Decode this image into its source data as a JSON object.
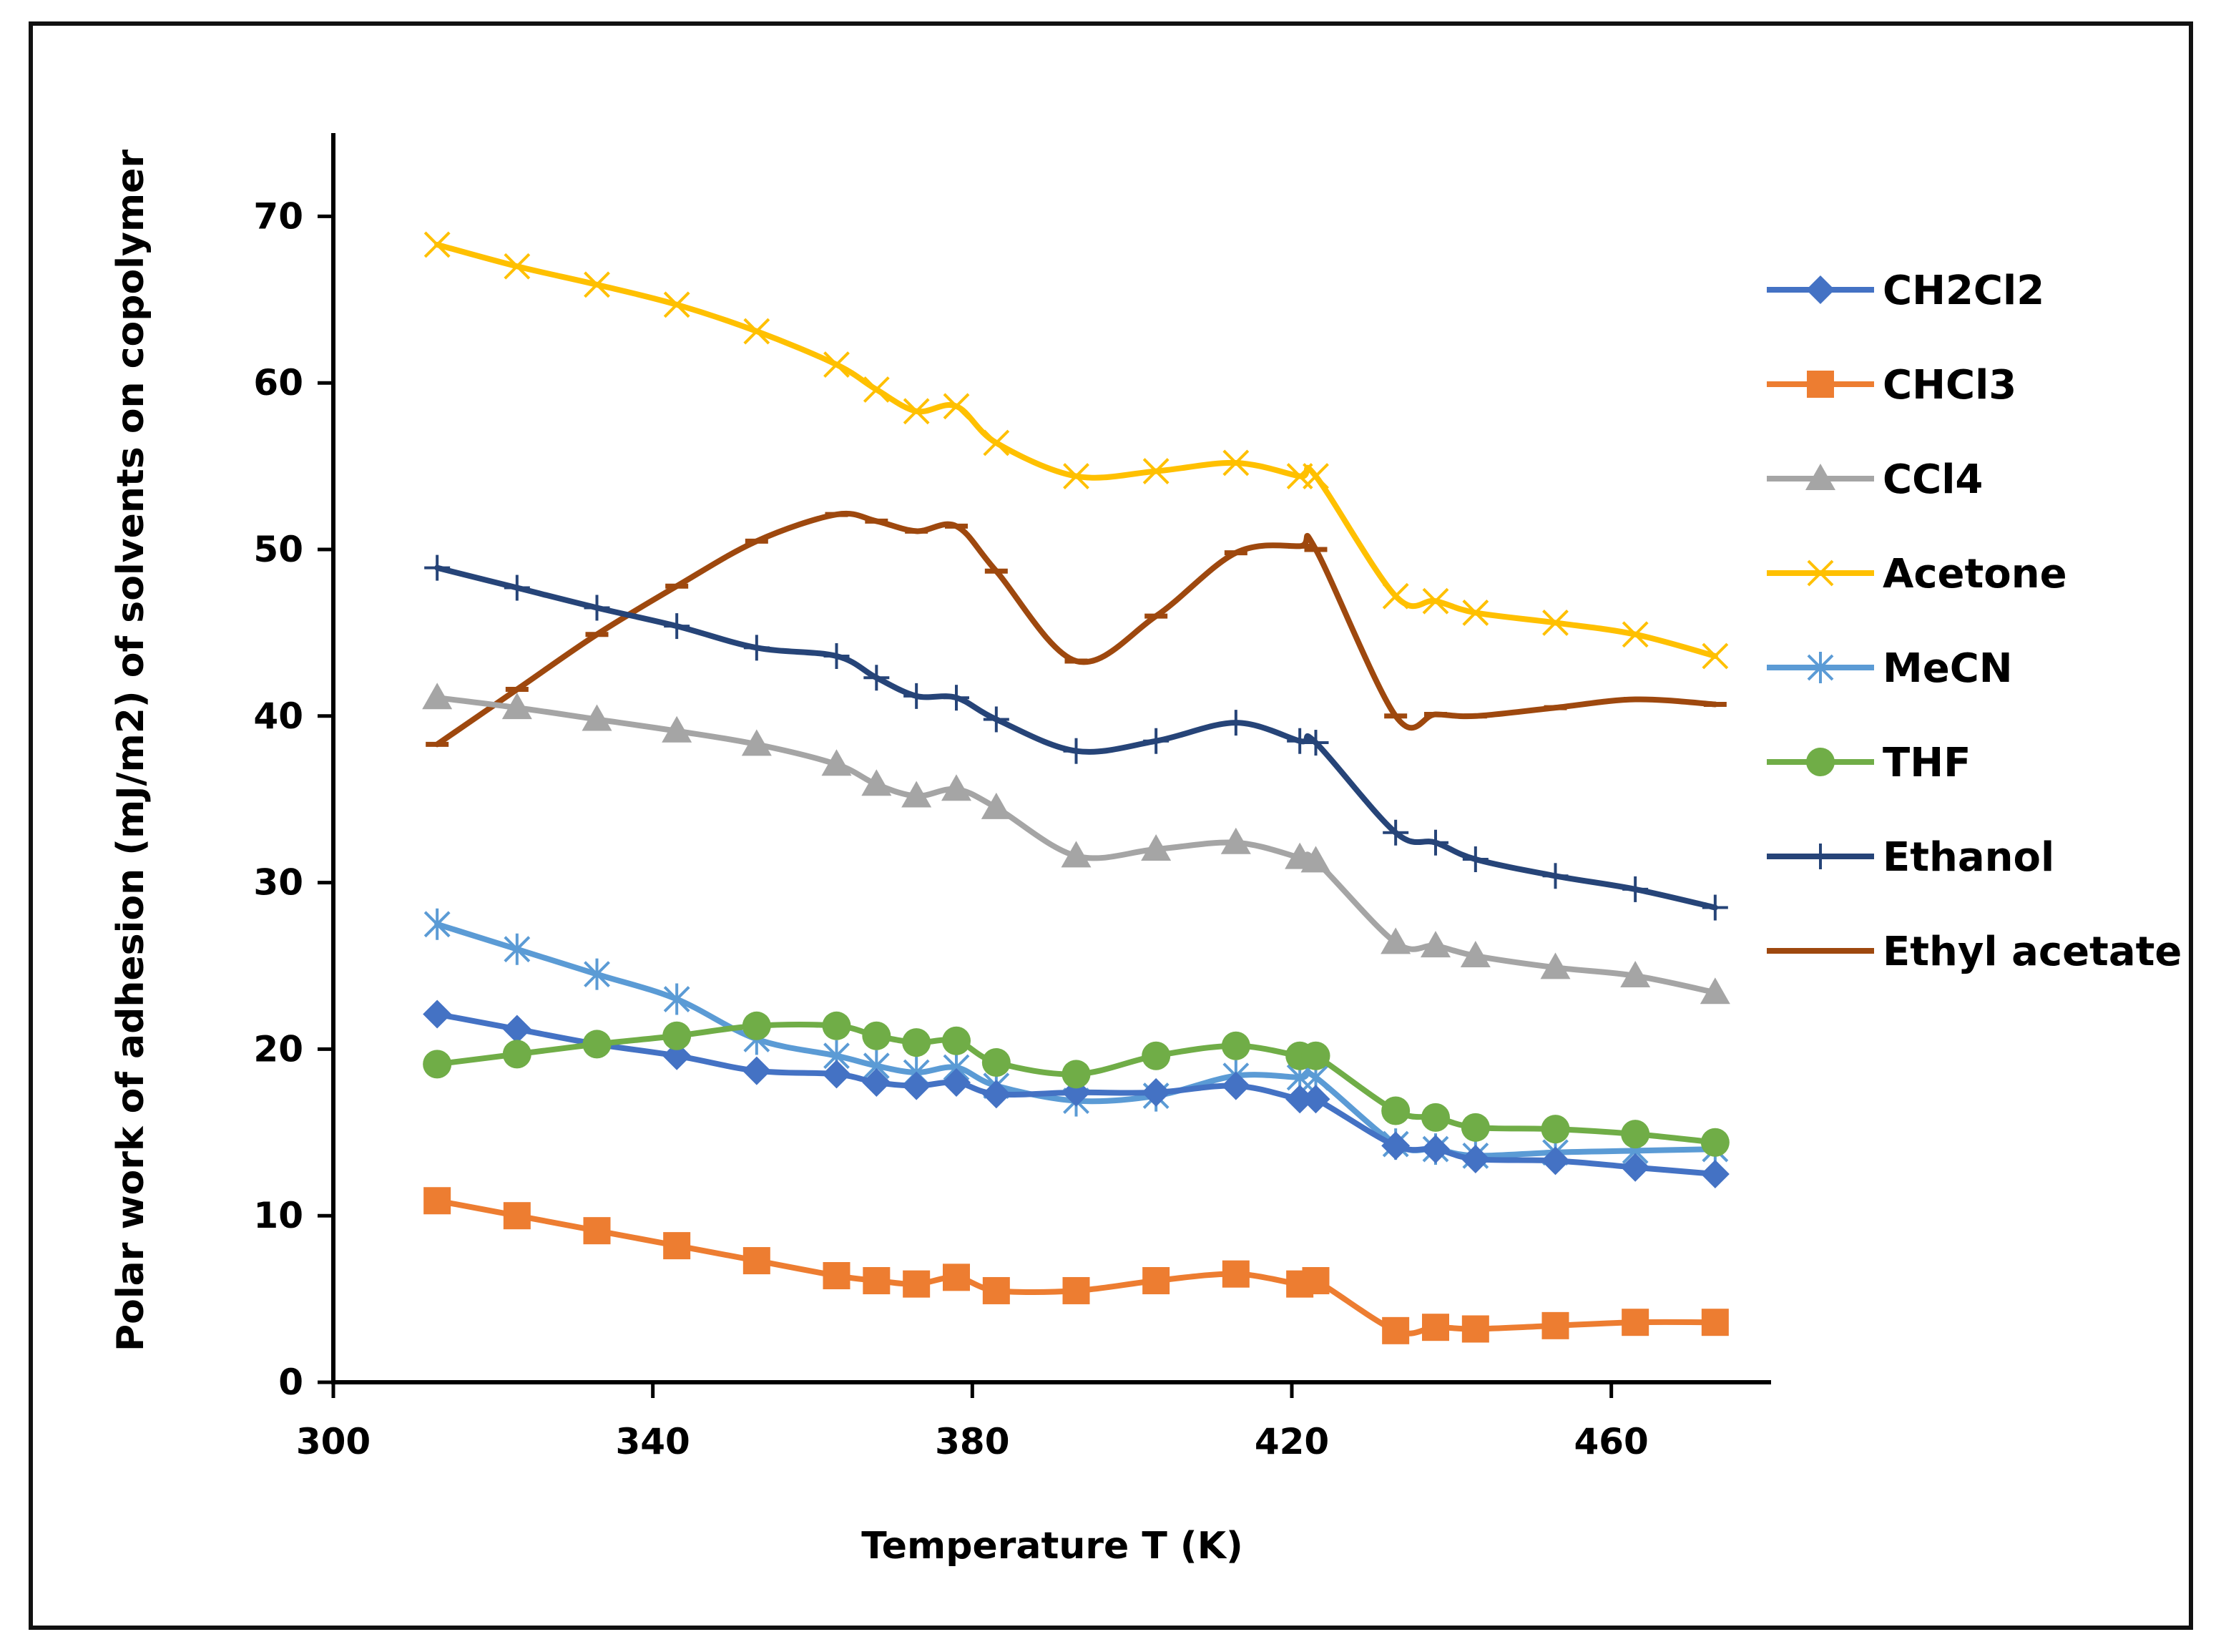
{
  "chart_data": {
    "type": "line",
    "title": "",
    "xlabel": "Temperature T (K)",
    "ylabel": "Polar work of adhesion (mJ/m2) of solvents on copolymer",
    "xlim": [
      300,
      480
    ],
    "ylim": [
      0,
      75
    ],
    "xticks": [
      300,
      340,
      380,
      420,
      460
    ],
    "yticks": [
      0,
      10,
      20,
      30,
      40,
      50,
      60,
      70
    ],
    "x_tick_labels": [
      "300",
      "340",
      "380",
      "420",
      "460"
    ],
    "y_tick_labels": [
      "0",
      "10",
      "20",
      "30",
      "40",
      "50",
      "60",
      "70"
    ],
    "grid": false,
    "legend_position": "right",
    "x": [
      313,
      323,
      333,
      343,
      353,
      363,
      368,
      373,
      378,
      383,
      393,
      403,
      413,
      421,
      423,
      433,
      438,
      443,
      453,
      463,
      473
    ],
    "series": [
      {
        "name": "CH2Cl2",
        "color": "#4472C4",
        "marker": "diamond",
        "values": [
          22.1,
          21.2,
          20.3,
          19.6,
          18.7,
          18.5,
          18.0,
          17.8,
          18.0,
          17.3,
          17.4,
          17.4,
          17.8,
          17.0,
          17.0,
          14.2,
          14.0,
          13.4,
          13.3,
          12.9,
          12.5
        ]
      },
      {
        "name": "CHCl3",
        "color": "#ED7D31",
        "marker": "square",
        "values": [
          10.9,
          10.0,
          9.1,
          8.2,
          7.3,
          6.4,
          6.1,
          5.9,
          6.3,
          5.5,
          5.5,
          6.1,
          6.5,
          5.9,
          6.1,
          3.1,
          3.3,
          3.2,
          3.4,
          3.6,
          3.6
        ]
      },
      {
        "name": "CCl4",
        "color": "#A5A5A5",
        "marker": "triangle",
        "values": [
          41.1,
          40.5,
          39.8,
          39.1,
          38.3,
          37.1,
          35.9,
          35.2,
          35.6,
          34.5,
          31.6,
          32.0,
          32.4,
          31.5,
          31.3,
          26.4,
          26.2,
          25.6,
          24.9,
          24.4,
          23.4
        ]
      },
      {
        "name": "Acetone",
        "color": "#FFC000",
        "marker": "x",
        "values": [
          68.3,
          67.0,
          65.9,
          64.7,
          63.1,
          61.1,
          59.6,
          58.3,
          58.6,
          56.4,
          54.4,
          54.7,
          55.2,
          54.4,
          54.4,
          47.2,
          46.9,
          46.2,
          45.6,
          44.9,
          43.6
        ]
      },
      {
        "name": "MeCN",
        "color": "#5B9BD5",
        "marker": "asterisk",
        "values": [
          27.5,
          26.0,
          24.5,
          23.0,
          20.6,
          19.6,
          19.0,
          18.6,
          18.9,
          17.8,
          16.9,
          17.2,
          18.4,
          18.3,
          18.3,
          14.3,
          14.0,
          13.6,
          13.8,
          13.9,
          14.0
        ]
      },
      {
        "name": "THF",
        "color": "#70AD47",
        "marker": "circle",
        "values": [
          19.1,
          19.7,
          20.3,
          20.8,
          21.4,
          21.4,
          20.8,
          20.4,
          20.5,
          19.2,
          18.5,
          19.6,
          20.2,
          19.6,
          19.6,
          16.3,
          15.9,
          15.3,
          15.2,
          14.9,
          14.4
        ]
      },
      {
        "name": "Ethanol",
        "color": "#264478",
        "marker": "plus",
        "values": [
          48.9,
          47.7,
          46.5,
          45.4,
          44.1,
          43.6,
          42.3,
          41.2,
          41.1,
          39.8,
          37.9,
          38.5,
          39.6,
          38.5,
          38.4,
          33.0,
          32.4,
          31.4,
          30.4,
          29.6,
          28.5
        ]
      },
      {
        "name": "Ethyl acetate",
        "color": "#9E480E",
        "marker": "dash",
        "values": [
          38.3,
          41.6,
          44.9,
          47.8,
          50.5,
          52.1,
          51.7,
          51.1,
          51.4,
          48.7,
          43.3,
          46.0,
          49.8,
          50.2,
          50.0,
          40.0,
          40.1,
          40.0,
          40.5,
          41.0,
          40.7
        ]
      }
    ]
  }
}
